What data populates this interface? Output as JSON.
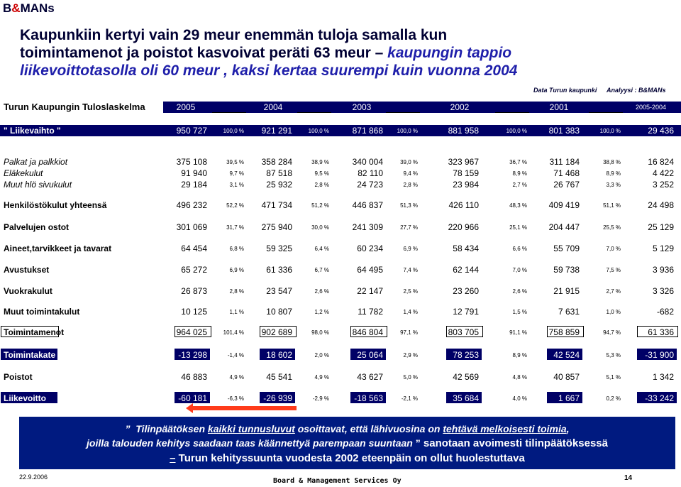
{
  "logo": {
    "part1": "B",
    "amp": "&",
    "part2": "MANs"
  },
  "title": {
    "line1": "Kaupunkiin kertyi vain 29 meur enemmän tuloja samalla kun",
    "line2_a": "toimintamenot ja poistot kasvoivat peräti 63 meur – ",
    "line2_b": "kaupungin tappio",
    "line3": "liikevoittotasolla oli 60 meur , kaksi kertaa suurempi kuin vuonna 2004"
  },
  "source": {
    "data": "Data Turun kaupunki",
    "analysis": "Analyysi : B&MANs"
  },
  "table": {
    "title": "Turun Kaupungin Tuloslaskelma",
    "years": [
      "2005",
      "2004",
      "2003",
      "2002",
      "2001"
    ],
    "last_col_header": "2005-2004",
    "rows": [
      {
        "label": "\" Liikevaihto \"",
        "vals": [
          "950 727",
          "921 291",
          "871 868",
          "881 958",
          "801 383"
        ],
        "pcts": [
          "100,0 %",
          "100,0 %",
          "100,0 %",
          "100,0 %",
          "100,0 %"
        ],
        "diff": "29 436"
      },
      {
        "label": "Palkat ja palkkiot",
        "vals": [
          "375 108",
          "358 284",
          "340 004",
          "323 967",
          "311 184"
        ],
        "pcts": [
          "39,5 %",
          "38,9 %",
          "39,0 %",
          "36,7 %",
          "38,8 %"
        ],
        "diff": "16 824"
      },
      {
        "label": "Eläkekulut",
        "vals": [
          "91 940",
          "87 518",
          "82 110",
          "78 159",
          "71 468"
        ],
        "pcts": [
          "9,7 %",
          "9,5 %",
          "9,4 %",
          "8,9 %",
          "8,9 %"
        ],
        "diff": "4 422"
      },
      {
        "label": "Muut hlö sivukulut",
        "vals": [
          "29 184",
          "25 932",
          "24 723",
          "23 984",
          "26 767"
        ],
        "pcts": [
          "3,1 %",
          "2,8 %",
          "2,8 %",
          "2,7 %",
          "3,3 %"
        ],
        "diff": "3 252"
      },
      {
        "label": "Henkilöstökulut yhteensä",
        "vals": [
          "496 232",
          "471 734",
          "446 837",
          "426 110",
          "409 419"
        ],
        "pcts": [
          "52,2 %",
          "51,2 %",
          "51,3 %",
          "48,3 %",
          "51,1 %"
        ],
        "diff": "24 498"
      },
      {
        "label": "Palvelujen ostot",
        "vals": [
          "301 069",
          "275 940",
          "241 309",
          "220 966",
          "204 447"
        ],
        "pcts": [
          "31,7 %",
          "30,0 %",
          "27,7 %",
          "25,1 %",
          "25,5 %"
        ],
        "diff": "25 129"
      },
      {
        "label": "Aineet,tarvikkeet ja tavarat",
        "vals": [
          "64 454",
          "59 325",
          "60 234",
          "58 434",
          "55 709"
        ],
        "pcts": [
          "6,8 %",
          "6,4 %",
          "6,9 %",
          "6,6 %",
          "7,0 %"
        ],
        "diff": "5 129"
      },
      {
        "label": "Avustukset",
        "vals": [
          "65 272",
          "61 336",
          "64 495",
          "62 144",
          "59 738"
        ],
        "pcts": [
          "6,9 %",
          "6,7 %",
          "7,4 %",
          "7,0 %",
          "7,5 %"
        ],
        "diff": "3 936"
      },
      {
        "label": "Vuokrakulut",
        "vals": [
          "26 873",
          "23 547",
          "22 147",
          "23 260",
          "21 915"
        ],
        "pcts": [
          "2,8 %",
          "2,6 %",
          "2,5 %",
          "2,6 %",
          "2,7 %"
        ],
        "diff": "3 326"
      },
      {
        "label": "Muut toimintakulut",
        "vals": [
          "10 125",
          "10 807",
          "11 782",
          "12 791",
          "7 631"
        ],
        "pcts": [
          "1,1 %",
          "1,2 %",
          "1,4 %",
          "1,5 %",
          "1,0 %"
        ],
        "diff": "-682"
      },
      {
        "label": "Toimintamenot",
        "vals": [
          "964 025",
          "902 689",
          "846 804",
          "803 705",
          "758 859"
        ],
        "pcts": [
          "101,4 %",
          "98,0 %",
          "97,1 %",
          "91,1 %",
          "94,7 %"
        ],
        "diff": "61 336"
      },
      {
        "label": "Toimintakate",
        "vals": [
          "-13 298",
          "18 602",
          "25 064",
          "78 253",
          "42 524"
        ],
        "pcts": [
          "-1,4 %",
          "2,0 %",
          "2,9 %",
          "8,9 %",
          "5,3 %"
        ],
        "diff": "-31 900"
      },
      {
        "label": "Poistot",
        "vals": [
          "46 883",
          "45 541",
          "43 627",
          "42 569",
          "40 857"
        ],
        "pcts": [
          "4,9 %",
          "4,9 %",
          "5,0 %",
          "4,8 %",
          "5,1 %"
        ],
        "diff": "1 342"
      },
      {
        "label": "Liikevoitto",
        "vals": [
          "-60 181",
          "-26 939",
          "-18 563",
          "35 684",
          "1 667"
        ],
        "pcts": [
          "-6,3 %",
          "-2,9 %",
          "-2,1 %",
          "4,0 %",
          "0,2 %"
        ],
        "diff": "-33 242"
      }
    ]
  },
  "footer_box": {
    "l1_quote": "”",
    "l1_a": "Tilinpäätöksen ",
    "l1_b": "kaikki tunnusluvut",
    "l1_c": " osoittavat, että lähivuosina on ",
    "l1_d": "tehtävä melkoisesti toimia",
    "l1_e": ",",
    "l2_a": "joilla talouden kehitys saadaan taas käännettyä parempaan suuntaan ",
    "l2_quote": "”",
    "l2_b": " sanotaan avoimesti tilinpäätöksessä",
    "l3_dash": "–",
    "l3_text": " Turun kehityssuunta vuodesta 2002 eteenpäin on ollut huolestuttava"
  },
  "footer": {
    "date": "22.9.2006",
    "org": "Board & Management Services Oy",
    "page": "14"
  },
  "colors": {
    "band": "#000066",
    "footer_box": "#001a80",
    "arrow": "#ff3b1a"
  }
}
